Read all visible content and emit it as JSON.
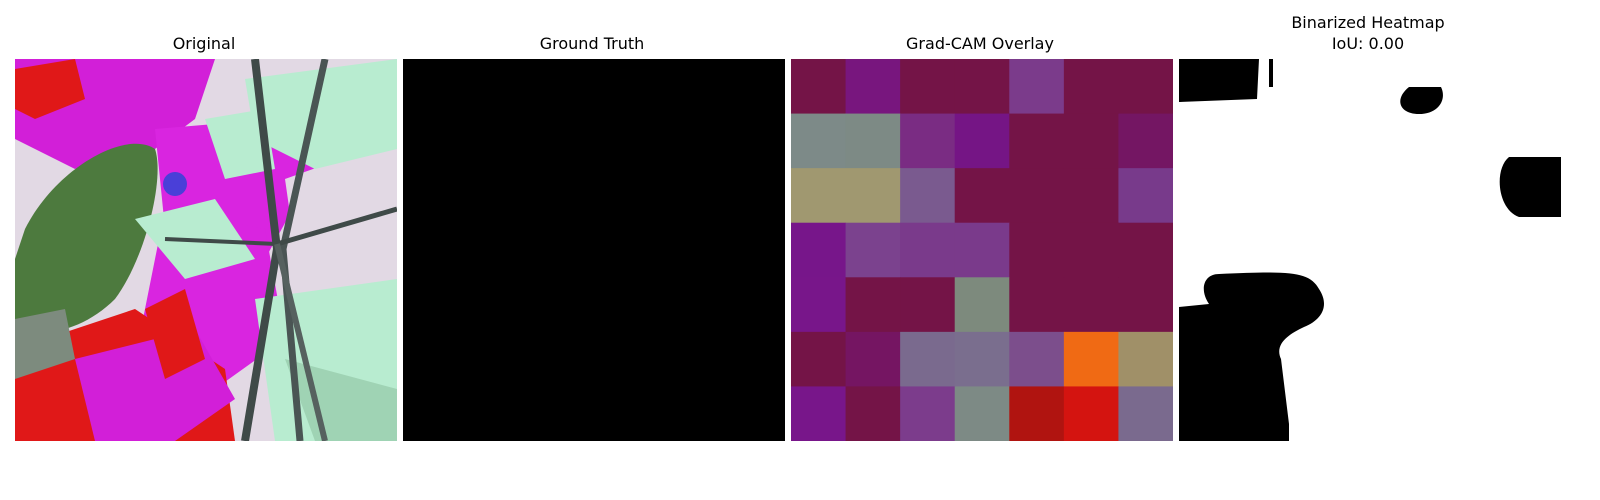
{
  "panels": {
    "original": {
      "title": "Original"
    },
    "truth": {
      "title": "Ground Truth"
    },
    "gradcam": {
      "title": "Grad-CAM Overlay"
    },
    "binarized": {
      "title": "Binarized Heatmap",
      "subtitle": "IoU: 0.00"
    }
  },
  "gradcam_grid": {
    "rows": 7,
    "cols": 7,
    "cells": [
      [
        "#741447",
        "#78167e",
        "#741447",
        "#741447",
        "#7b3b8b",
        "#741447",
        "#741447"
      ],
      [
        "#7d8a88",
        "#7d8a85",
        "#7a2c83",
        "#751585",
        "#741447",
        "#741447",
        "#741663"
      ],
      [
        "#a09870",
        "#a09870",
        "#7a5a8f",
        "#741447",
        "#741447",
        "#741447",
        "#783a8b"
      ],
      [
        "#77168a",
        "#7b428e",
        "#7a3a8b",
        "#7a3a8b",
        "#741447",
        "#741447",
        "#741447"
      ],
      [
        "#78168a",
        "#741447",
        "#741447",
        "#7d8a7d",
        "#741447",
        "#741447",
        "#741447"
      ],
      [
        "#741447",
        "#751562",
        "#7a6a8e",
        "#7a6e8e",
        "#7c4e8c",
        "#f06a14",
        "#a09068"
      ],
      [
        "#78168a",
        "#741447",
        "#7c3c8c",
        "#7d8a85",
        "#b01410",
        "#d41410",
        "#7a6a8e"
      ]
    ]
  },
  "colors": {
    "truth_fill": "#000000",
    "heatmap_fg": "#ffffff",
    "heatmap_bg": "#000000"
  }
}
